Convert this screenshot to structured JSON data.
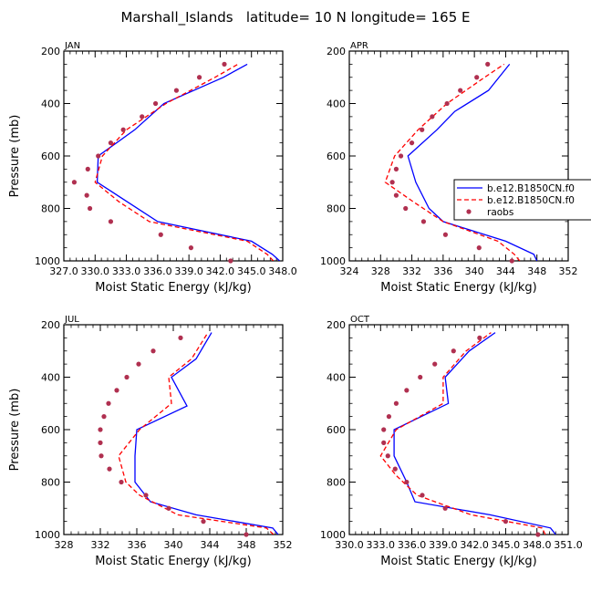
{
  "figure": {
    "title": "Marshall_Islands   latitude= 10 N longitude= 165 E",
    "legend": [
      {
        "label": "b.e12.B1850CN.f0",
        "color": "#0000ff",
        "style": "solid"
      },
      {
        "label": "b.e12.B1850CN.f0",
        "color": "#ff0000",
        "style": "dashed"
      },
      {
        "label": "raobs",
        "color": "#b03050",
        "style": "dots"
      }
    ]
  },
  "chart_data": [
    {
      "type": "line",
      "panel": "JAN",
      "title": "JAN",
      "xlabel": "Moist Static Energy (kJ/kg)",
      "ylabel": "Pressure (mb)",
      "xlim": [
        327.0,
        348.0
      ],
      "xticks": [
        327.0,
        330.0,
        333.0,
        336.0,
        339.0,
        342.0,
        345.0,
        348.0
      ],
      "xticklabels": [
        "327.0",
        "330.0",
        "333.0",
        "336.0",
        "339.0",
        "342.0",
        "345.0",
        "348.0"
      ],
      "ylim": [
        1000,
        200
      ],
      "yticks": [
        200,
        400,
        600,
        800,
        1000
      ],
      "series": [
        {
          "name": "b.e12.B1850CN.f0",
          "kind": "line",
          "color": "#0000ff",
          "pressure": [
            1000,
            975,
            925,
            850,
            700,
            600,
            500,
            400,
            300,
            250
          ],
          "values": [
            347.7,
            347.0,
            345.0,
            336.0,
            330.2,
            330.3,
            333.8,
            336.6,
            342.3,
            344.6
          ]
        },
        {
          "name": "b.e12.B1850CN.f0",
          "kind": "dashed",
          "color": "#ff0000",
          "pressure": [
            1000,
            975,
            925,
            850,
            775,
            700,
            600,
            500,
            400,
            300,
            250
          ],
          "values": [
            347.1,
            346.5,
            344.6,
            335.2,
            332.3,
            330.0,
            330.7,
            333.0,
            336.8,
            341.5,
            343.7
          ]
        },
        {
          "name": "raobs",
          "kind": "dots",
          "color": "#b03050",
          "pressure": [
            1000,
            950,
            900,
            850,
            800,
            750,
            700,
            650,
            600,
            550,
            500,
            450,
            400,
            350,
            300,
            250
          ],
          "values": [
            343.0,
            339.2,
            336.3,
            331.5,
            329.5,
            329.2,
            328.0,
            329.3,
            330.3,
            331.5,
            332.7,
            334.5,
            335.8,
            337.8,
            340.0,
            342.4
          ]
        }
      ]
    },
    {
      "type": "line",
      "panel": "APR",
      "title": "APR",
      "xlabel": "Moist Static Energy (kJ/kg)",
      "ylabel": "Pressure (mb)",
      "xlim": [
        324,
        352
      ],
      "xticks": [
        324,
        328,
        332,
        336,
        340,
        344,
        348,
        352
      ],
      "xticklabels": [
        "324",
        "328",
        "332",
        "336",
        "340",
        "344",
        "348",
        "352"
      ],
      "ylim": [
        1000,
        200
      ],
      "yticks": [
        200,
        400,
        600,
        800,
        1000
      ],
      "series": [
        {
          "name": "b.e12.B1850CN.f0",
          "kind": "line",
          "color": "#0000ff",
          "pressure": [
            1000,
            975,
            925,
            850,
            800,
            700,
            600,
            500,
            430,
            350,
            250
          ],
          "values": [
            348.0,
            347.6,
            344.0,
            336.0,
            334.2,
            332.5,
            331.5,
            335.2,
            337.5,
            341.8,
            344.5
          ]
        },
        {
          "name": "b.e12.B1850CN.f0",
          "kind": "dashed",
          "color": "#ff0000",
          "pressure": [
            1000,
            975,
            925,
            850,
            775,
            700,
            600,
            500,
            400,
            300,
            250
          ],
          "values": [
            345.8,
            345.1,
            343.0,
            336.0,
            332.2,
            328.6,
            329.8,
            332.8,
            336.5,
            341.3,
            343.8
          ]
        },
        {
          "name": "raobs",
          "kind": "dots",
          "color": "#b03050",
          "pressure": [
            1000,
            950,
            900,
            850,
            800,
            750,
            700,
            650,
            600,
            550,
            500,
            450,
            400,
            350,
            300,
            250
          ],
          "values": [
            344.8,
            340.6,
            336.3,
            333.5,
            331.2,
            330.0,
            329.5,
            330.0,
            330.6,
            332.0,
            333.3,
            334.6,
            336.5,
            338.2,
            340.3,
            341.7
          ]
        }
      ]
    },
    {
      "type": "line",
      "panel": "JUL",
      "title": "JUL",
      "xlabel": "Moist Static Energy (kJ/kg)",
      "ylabel": "Pressure (mb)",
      "xlim": [
        328,
        352
      ],
      "xticks": [
        328,
        332,
        336,
        340,
        344,
        348,
        352
      ],
      "xticklabels": [
        "328",
        "332",
        "336",
        "340",
        "344",
        "348",
        "352"
      ],
      "ylim": [
        1000,
        200
      ],
      "yticks": [
        200,
        400,
        600,
        800,
        1000
      ],
      "series": [
        {
          "name": "b.e12.B1850CN.f0",
          "kind": "line",
          "color": "#0000ff",
          "pressure": [
            1000,
            975,
            925,
            875,
            800,
            700,
            600,
            510,
            400,
            330,
            230
          ],
          "values": [
            351.5,
            350.9,
            342.5,
            337.5,
            335.8,
            335.8,
            336.0,
            341.5,
            339.8,
            342.5,
            344.2
          ]
        },
        {
          "name": "b.e12.B1850CN.f0",
          "kind": "dashed",
          "color": "#ff0000",
          "pressure": [
            1000,
            975,
            925,
            850,
            800,
            700,
            600,
            500,
            400,
            330,
            230
          ],
          "values": [
            351.0,
            350.2,
            340.5,
            336.3,
            334.8,
            334.0,
            336.3,
            339.8,
            339.5,
            342.0,
            343.8
          ]
        },
        {
          "name": "raobs",
          "kind": "dots",
          "color": "#b03050",
          "pressure": [
            1000,
            950,
            900,
            850,
            800,
            750,
            700,
            650,
            600,
            550,
            500,
            450,
            400,
            350,
            300,
            250
          ],
          "values": [
            348.0,
            343.3,
            339.5,
            337.0,
            334.3,
            333.0,
            332.1,
            332.0,
            332.0,
            332.4,
            332.9,
            333.8,
            334.9,
            336.2,
            337.8,
            340.8
          ]
        }
      ]
    },
    {
      "type": "line",
      "panel": "OCT",
      "title": "OCT",
      "xlabel": "Moist Static Energy (kJ/kg)",
      "ylabel": "Pressure (mb)",
      "xlim": [
        330.0,
        351.0
      ],
      "xticks": [
        330.0,
        333.0,
        336.0,
        339.0,
        342.0,
        345.0,
        348.0,
        351.0
      ],
      "xticklabels": [
        "330.0",
        "333.0",
        "336.0",
        "339.0",
        "342.0",
        "345.0",
        "348.0",
        "351.0"
      ],
      "ylim": [
        1000,
        200
      ],
      "yticks": [
        200,
        400,
        600,
        800,
        1000
      ],
      "series": [
        {
          "name": "b.e12.B1850CN.f0",
          "kind": "line",
          "color": "#0000ff",
          "pressure": [
            1000,
            975,
            925,
            875,
            800,
            700,
            600,
            500,
            400,
            300,
            230
          ],
          "values": [
            349.8,
            349.3,
            343.5,
            336.3,
            335.5,
            334.3,
            334.3,
            339.5,
            339.2,
            341.5,
            344.0
          ]
        },
        {
          "name": "b.e12.B1850CN.f0",
          "kind": "dashed",
          "color": "#ff0000",
          "pressure": [
            1000,
            975,
            925,
            850,
            775,
            700,
            600,
            500,
            400,
            300,
            230
          ],
          "values": [
            348.8,
            348.5,
            341.7,
            336.5,
            334.5,
            333.0,
            334.5,
            339.0,
            339.0,
            341.2,
            343.6
          ]
        },
        {
          "name": "raobs",
          "kind": "dots",
          "color": "#b03050",
          "pressure": [
            1000,
            950,
            900,
            850,
            800,
            750,
            700,
            650,
            600,
            550,
            500,
            450,
            400,
            350,
            300,
            250
          ],
          "values": [
            348.1,
            345.0,
            339.2,
            337.0,
            335.5,
            334.4,
            333.7,
            333.3,
            333.3,
            333.8,
            334.5,
            335.5,
            336.8,
            338.2,
            340.0,
            342.5
          ]
        }
      ]
    }
  ]
}
